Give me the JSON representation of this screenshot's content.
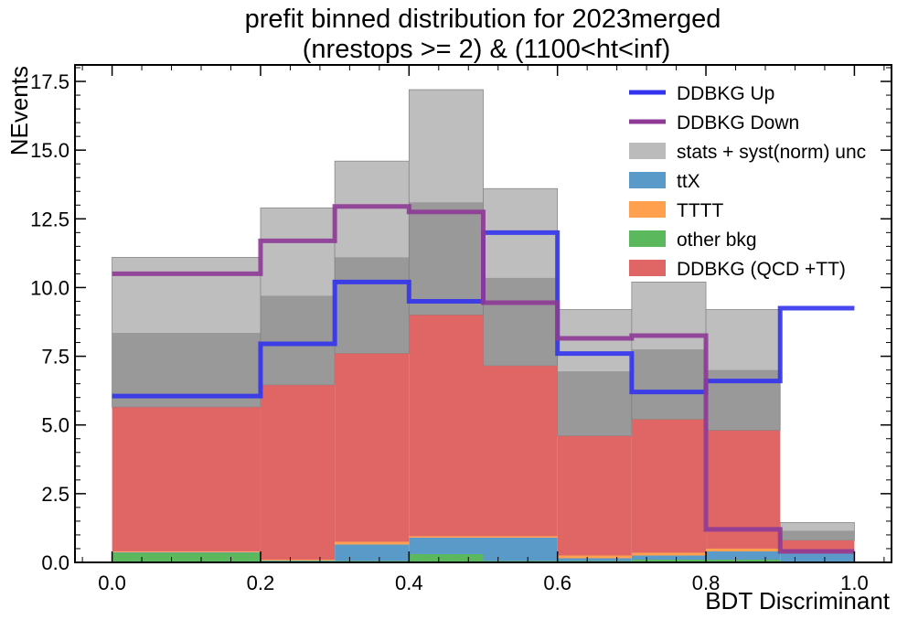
{
  "chart_data": {
    "type": "bar",
    "stacked": true,
    "title": "prefit binned distribution for 2023merged",
    "subtitle": "(nrestops >= 2) & (1100<ht<inf)",
    "xlabel": "BDT Discriminant",
    "ylabel": "NEvents",
    "xlim": [
      -0.05,
      1.05
    ],
    "ylim": [
      0,
      18.1
    ],
    "grid": false,
    "legend_position": "top-right",
    "bin_edges": [
      0.0,
      0.2,
      0.3,
      0.4,
      0.5,
      0.6,
      0.7,
      0.8,
      0.9,
      1.0
    ],
    "x_ticks": [
      "0.0",
      "0.2",
      "0.4",
      "0.6",
      "0.8",
      "1.0"
    ],
    "x_tick_values": [
      0.0,
      0.2,
      0.4,
      0.6,
      0.8,
      1.0
    ],
    "y_ticks": [
      "0.0",
      "2.5",
      "5.0",
      "7.5",
      "10.0",
      "12.5",
      "15.0",
      "17.5"
    ],
    "y_tick_values": [
      0,
      2.5,
      5.0,
      7.5,
      10.0,
      12.5,
      15.0,
      17.5
    ],
    "stack": [
      {
        "name": "other bkg",
        "color": "#5cb85c",
        "values": [
          0.35,
          0.05,
          0.05,
          0.3,
          0.05,
          0.05,
          0.1,
          0.1,
          0.02
        ]
      },
      {
        "name": "ttX",
        "color": "#5a9ac9",
        "values": [
          0.02,
          0.02,
          0.6,
          0.6,
          0.85,
          0.1,
          0.15,
          0.3,
          0.3
        ]
      },
      {
        "name": "TTTT",
        "color": "#ffa04e",
        "values": [
          0.03,
          0.03,
          0.1,
          0.05,
          0.05,
          0.1,
          0.1,
          0.1,
          0.03
        ]
      },
      {
        "name": "DDBKG (QCD +TT)",
        "color": "#e06666",
        "values": [
          5.25,
          6.35,
          6.85,
          8.05,
          6.2,
          4.35,
          4.85,
          4.3,
          0.45
        ]
      }
    ],
    "uncertainty": {
      "name": "stats + syst(norm) unc",
      "color": "#aaaaaa",
      "low": [
        5.65,
        6.45,
        7.6,
        9.0,
        7.15,
        4.6,
        5.2,
        4.8,
        0.8
      ],
      "high": [
        11.1,
        12.9,
        14.6,
        17.2,
        13.6,
        9.2,
        10.2,
        9.2,
        1.45
      ]
    },
    "inner_band": {
      "low": [
        5.65,
        6.45,
        7.6,
        9.0,
        7.15,
        4.6,
        5.2,
        4.8,
        0.8
      ],
      "high": [
        8.35,
        9.7,
        11.1,
        13.1,
        10.35,
        6.95,
        7.75,
        7.0,
        1.15
      ]
    },
    "lines": [
      {
        "name": "DDBKG Up",
        "color": "#3333ee",
        "values": [
          6.05,
          7.95,
          10.2,
          9.5,
          12.0,
          7.6,
          6.2,
          6.6,
          9.25
        ]
      },
      {
        "name": "DDBKG Down",
        "color": "#8e3a96",
        "values": [
          10.5,
          11.7,
          12.95,
          12.75,
          9.45,
          8.15,
          8.25,
          1.2,
          0.4
        ]
      }
    ],
    "legend": [
      {
        "label": "DDBKG Up",
        "kind": "line",
        "color": "#3333ee"
      },
      {
        "label": "DDBKG Down",
        "kind": "line",
        "color": "#8e3a96"
      },
      {
        "label": "stats + syst(norm) unc",
        "kind": "patch",
        "color": "#bbbbbb"
      },
      {
        "label": "ttX",
        "kind": "patch",
        "color": "#5a9ac9"
      },
      {
        "label": "TTTT",
        "kind": "patch",
        "color": "#ffa04e"
      },
      {
        "label": "other bkg",
        "kind": "patch",
        "color": "#5cb85c"
      },
      {
        "label": "DDBKG (QCD +TT)",
        "kind": "patch",
        "color": "#e06666"
      }
    ]
  }
}
